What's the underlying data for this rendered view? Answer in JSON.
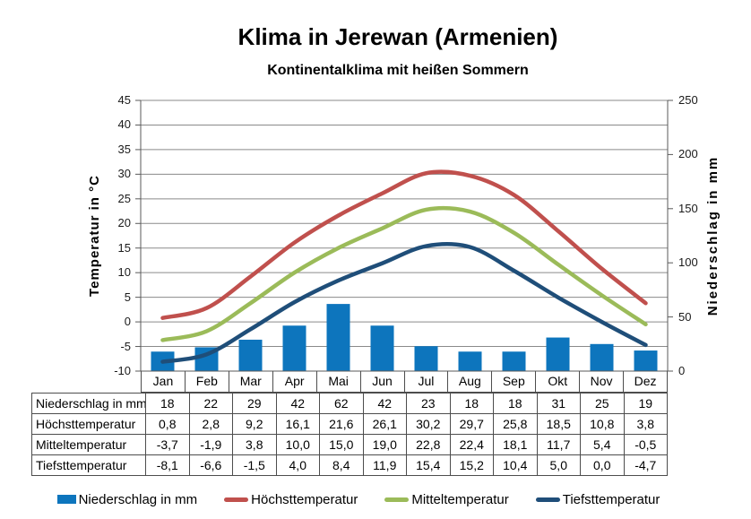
{
  "title": "Klima in Jerewan (Armenien)",
  "subtitle": "Kontinentalklima mit heißen Sommern",
  "chart_data": {
    "type": "bar+line",
    "categories": [
      "Jan",
      "Feb",
      "Mar",
      "Apr",
      "Mai",
      "Jun",
      "Jul",
      "Aug",
      "Sep",
      "Okt",
      "Nov",
      "Dez"
    ],
    "bar_series": {
      "name": "Niederschlag in mm",
      "values": [
        18,
        22,
        29,
        42,
        62,
        42,
        23,
        18,
        18,
        31,
        25,
        19
      ],
      "color": "#0d75bd",
      "axis": "right"
    },
    "line_series": [
      {
        "name": "Höchsttemperatur",
        "values": [
          0.8,
          2.8,
          9.2,
          16.1,
          21.6,
          26.1,
          30.2,
          29.7,
          25.8,
          18.5,
          10.8,
          3.8
        ],
        "color": "#c0504d"
      },
      {
        "name": "Mitteltemperatur",
        "values": [
          -3.7,
          -1.9,
          3.8,
          10.0,
          15.0,
          19.0,
          22.8,
          22.4,
          18.1,
          11.7,
          5.4,
          -0.5
        ],
        "color": "#9bbb59"
      },
      {
        "name": "Tiefsttemperatur",
        "values": [
          -8.1,
          -6.6,
          -1.5,
          4.0,
          8.4,
          11.9,
          15.4,
          15.2,
          10.4,
          5.0,
          0.0,
          -4.7
        ],
        "color": "#1f4e79"
      }
    ],
    "left_axis": {
      "label": "Temperatur in °C",
      "min": -10,
      "max": 45,
      "step": 5
    },
    "right_axis": {
      "label": "Niederschlag  in  mm",
      "min": 0,
      "max": 250,
      "step": 50
    },
    "grid": true,
    "grid_color": "#8a8a8a",
    "axis_color": "#595959",
    "legend_position": "bottom"
  },
  "table": {
    "rows": [
      {
        "label": "Niederschlag in mm",
        "values": [
          "18",
          "22",
          "29",
          "42",
          "62",
          "42",
          "23",
          "18",
          "18",
          "31",
          "25",
          "19"
        ]
      },
      {
        "label": "Höchsttemperatur",
        "values": [
          "0,8",
          "2,8",
          "9,2",
          "16,1",
          "21,6",
          "26,1",
          "30,2",
          "29,7",
          "25,8",
          "18,5",
          "10,8",
          "3,8"
        ]
      },
      {
        "label": "Mitteltemperatur",
        "values": [
          "-3,7",
          "-1,9",
          "3,8",
          "10,0",
          "15,0",
          "19,0",
          "22,8",
          "22,4",
          "18,1",
          "11,7",
          "5,4",
          "-0,5"
        ]
      },
      {
        "label": "Tiefsttemperatur",
        "values": [
          "-8,1",
          "-6,6",
          "-1,5",
          "4,0",
          "8,4",
          "11,9",
          "15,4",
          "15,2",
          "10,4",
          "5,0",
          "0,0",
          "-4,7"
        ]
      }
    ]
  },
  "legend": {
    "items": [
      {
        "label": "Niederschlag in mm",
        "color": "#0d75bd",
        "swatch": "bar"
      },
      {
        "label": "Höchsttemperatur",
        "color": "#c0504d",
        "swatch": "line"
      },
      {
        "label": "Mitteltemperatur",
        "color": "#9bbb59",
        "swatch": "line"
      },
      {
        "label": "Tiefsttemperatur",
        "color": "#1f4e79",
        "swatch": "line"
      }
    ]
  }
}
